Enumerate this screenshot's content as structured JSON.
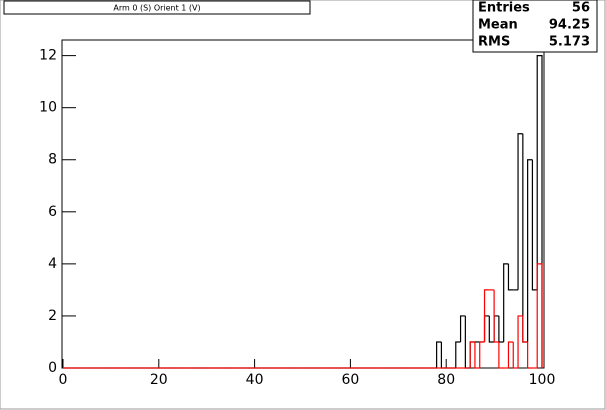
{
  "chart_data": {
    "type": "histogram",
    "title": "Arm 0 (S) Orient 1 (V)",
    "stats": {
      "labels": [
        "Entries",
        "Mean",
        "RMS"
      ],
      "values": [
        56,
        94.25,
        5.173
      ]
    },
    "bins": [
      0,
      1,
      2,
      3,
      4,
      5,
      6,
      7,
      8,
      9,
      10,
      11,
      12,
      13,
      14,
      15,
      16,
      17,
      18,
      19,
      20,
      21,
      22,
      23,
      24,
      25,
      26,
      27,
      28,
      29,
      30,
      31,
      32,
      33,
      34,
      35,
      36,
      37,
      38,
      39,
      40,
      41,
      42,
      43,
      44,
      45,
      46,
      47,
      48,
      49,
      50,
      51,
      52,
      53,
      54,
      55,
      56,
      57,
      58,
      59,
      60,
      61,
      62,
      63,
      64,
      65,
      66,
      67,
      68,
      69,
      70,
      71,
      72,
      73,
      74,
      75,
      76,
      77,
      78,
      79,
      80,
      81,
      82,
      83,
      84,
      85,
      86,
      87,
      88,
      89,
      90,
      91,
      92,
      93,
      94,
      95,
      96,
      97,
      98,
      99,
      100
    ],
    "series": [
      {
        "color": "#000000",
        "values": [
          0,
          0,
          0,
          0,
          0,
          0,
          0,
          0,
          0,
          0,
          0,
          0,
          0,
          0,
          0,
          0,
          0,
          0,
          0,
          0,
          0,
          0,
          0,
          0,
          0,
          0,
          0,
          0,
          0,
          0,
          0,
          0,
          0,
          0,
          0,
          0,
          0,
          0,
          0,
          0,
          0,
          0,
          0,
          0,
          0,
          0,
          0,
          0,
          0,
          0,
          0,
          0,
          0,
          0,
          0,
          0,
          0,
          0,
          0,
          0,
          0,
          0,
          0,
          0,
          0,
          0,
          0,
          0,
          0,
          0,
          0,
          0,
          0,
          0,
          0,
          0,
          0,
          0,
          1,
          0,
          0,
          0,
          1,
          2,
          0,
          1,
          1,
          1,
          2,
          1,
          2,
          1,
          4,
          3,
          3,
          9,
          1,
          8,
          3,
          12
        ]
      },
      {
        "color": "#ff0000",
        "values": [
          0,
          0,
          0,
          0,
          0,
          0,
          0,
          0,
          0,
          0,
          0,
          0,
          0,
          0,
          0,
          0,
          0,
          0,
          0,
          0,
          0,
          0,
          0,
          0,
          0,
          0,
          0,
          0,
          0,
          0,
          0,
          0,
          0,
          0,
          0,
          0,
          0,
          0,
          0,
          0,
          0,
          0,
          0,
          0,
          0,
          0,
          0,
          0,
          0,
          0,
          0,
          0,
          0,
          0,
          0,
          0,
          0,
          0,
          0,
          0,
          0,
          0,
          0,
          0,
          0,
          0,
          0,
          0,
          0,
          0,
          0,
          0,
          0,
          0,
          0,
          0,
          0,
          0,
          0,
          0,
          0,
          0,
          0,
          0,
          0,
          1,
          0,
          1,
          3,
          3,
          1,
          0,
          0,
          1,
          0,
          2,
          1,
          0,
          0,
          4
        ]
      }
    ],
    "xlim": [
      0,
      100
    ],
    "xticks": [
      0,
      20,
      40,
      60,
      80,
      100
    ],
    "ylim": [
      0,
      12.6
    ],
    "yticks": [
      0,
      2,
      4,
      6,
      8,
      10,
      12
    ]
  }
}
